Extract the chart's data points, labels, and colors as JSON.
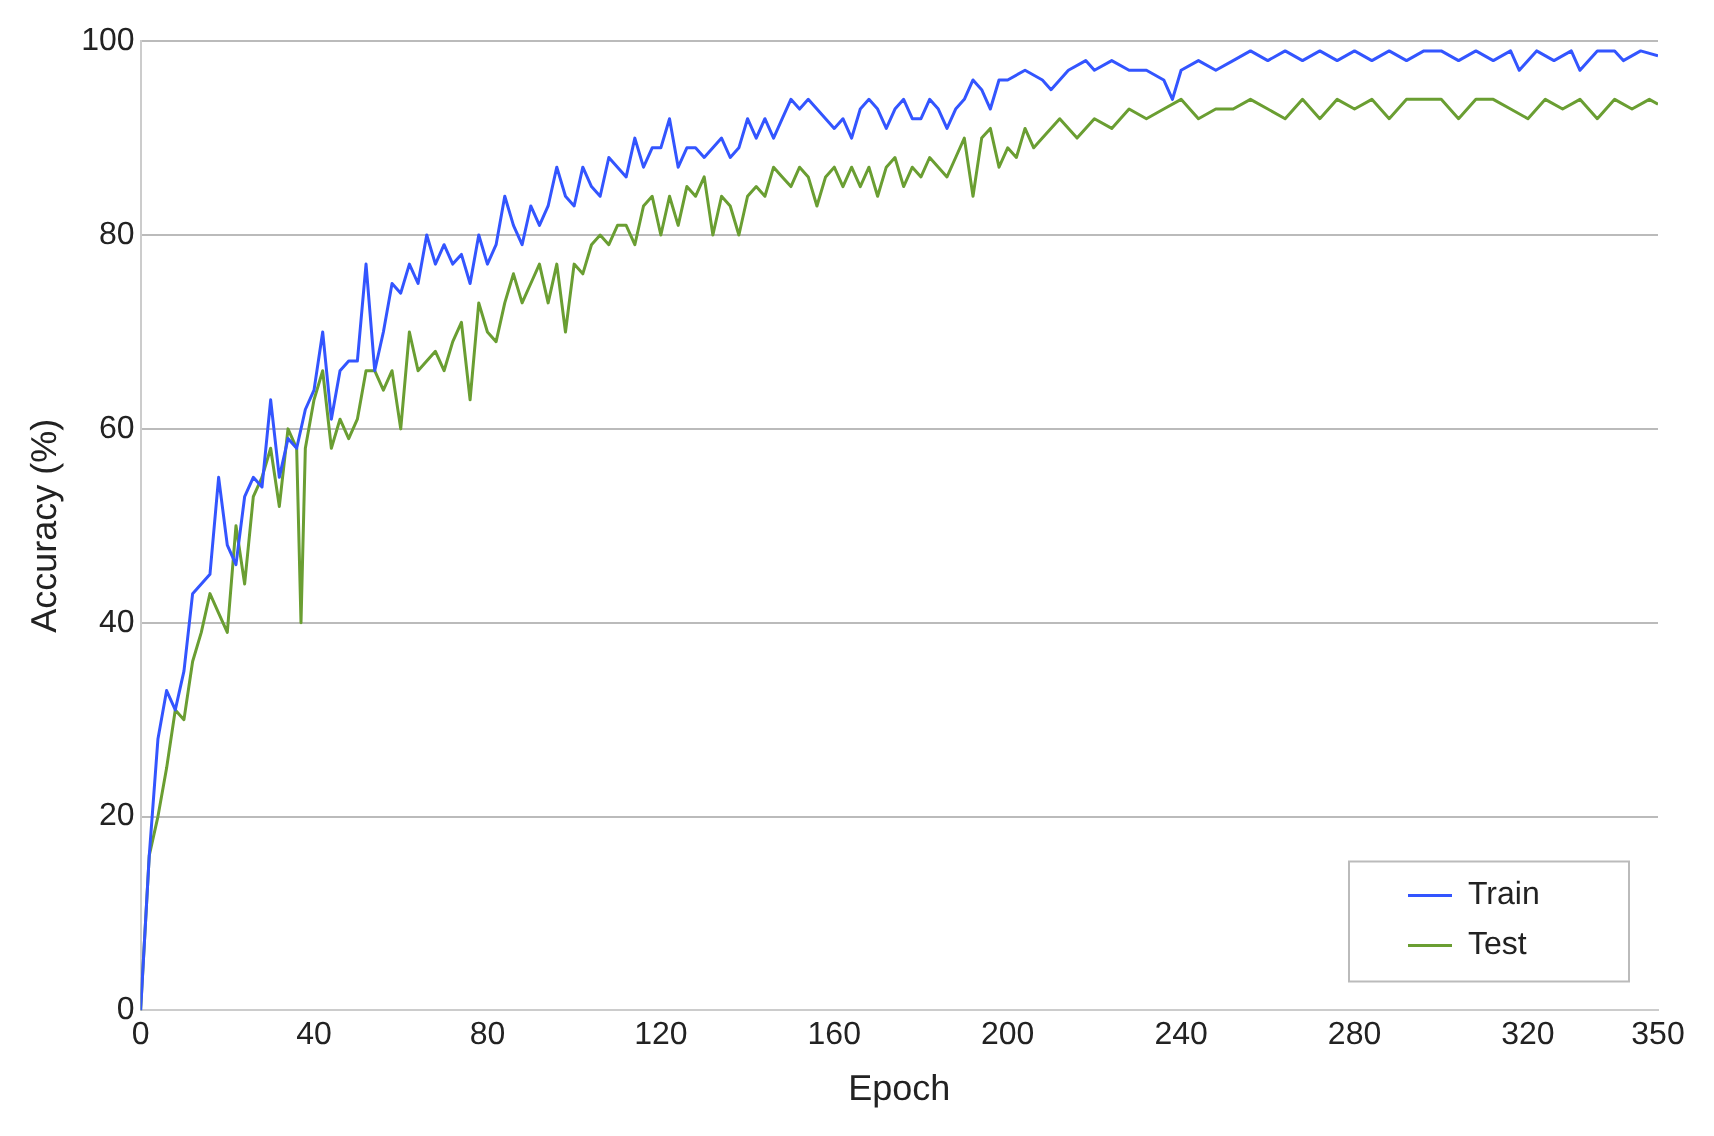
{
  "chart_data": {
    "type": "line",
    "xlabel": "Epoch",
    "ylabel": "Accuracy (%)",
    "xlim": [
      0,
      350
    ],
    "xticks": [
      0,
      40,
      80,
      120,
      160,
      200,
      240,
      280,
      320,
      350
    ],
    "ylim": [
      0,
      100
    ],
    "yticks": [
      0,
      20,
      40,
      60,
      80,
      100
    ],
    "grid": "y",
    "legend": "bottom right",
    "marker": "none",
    "line_style": "solid",
    "series": [
      {
        "name": "Train",
        "color": "#3355ff",
        "x": [
          0,
          2,
          4,
          6,
          8,
          10,
          12,
          14,
          16,
          18,
          20,
          22,
          24,
          26,
          28,
          30,
          32,
          34,
          36,
          38,
          40,
          42,
          44,
          46,
          48,
          50,
          52,
          54,
          56,
          58,
          60,
          62,
          64,
          66,
          68,
          70,
          72,
          74,
          76,
          78,
          80,
          82,
          84,
          86,
          88,
          90,
          92,
          94,
          96,
          98,
          100,
          102,
          104,
          106,
          108,
          110,
          112,
          114,
          116,
          118,
          120,
          122,
          124,
          126,
          128,
          130,
          132,
          134,
          136,
          138,
          140,
          142,
          144,
          146,
          148,
          150,
          152,
          154,
          156,
          158,
          160,
          162,
          164,
          166,
          168,
          170,
          172,
          174,
          176,
          178,
          180,
          182,
          184,
          186,
          188,
          190,
          192,
          194,
          196,
          198,
          200,
          204,
          208,
          210,
          214,
          218,
          220,
          224,
          228,
          232,
          236,
          238,
          240,
          244,
          248,
          252,
          256,
          260,
          264,
          268,
          272,
          276,
          280,
          284,
          288,
          292,
          296,
          300,
          304,
          308,
          312,
          316,
          318,
          322,
          326,
          330,
          332,
          336,
          340,
          342,
          346,
          350
        ],
        "values": [
          0,
          16,
          28,
          33,
          31,
          35,
          43,
          44,
          45,
          55,
          48,
          46,
          53,
          55,
          54,
          63,
          55,
          59,
          58,
          62,
          64,
          70,
          61,
          66,
          67,
          67,
          77,
          66,
          70,
          75,
          74,
          77,
          75,
          80,
          77,
          79,
          77,
          78,
          75,
          80,
          77,
          79,
          84,
          81,
          79,
          83,
          81,
          83,
          87,
          84,
          83,
          87,
          85,
          84,
          88,
          87,
          86,
          90,
          87,
          89,
          89,
          92,
          87,
          89,
          89,
          88,
          89,
          90,
          88,
          89,
          92,
          90,
          92,
          90,
          92,
          94,
          93,
          94,
          93,
          92,
          91,
          92,
          90,
          93,
          94,
          93,
          91,
          93,
          94,
          92,
          92,
          94,
          93,
          91,
          93,
          94,
          96,
          95,
          93,
          96,
          96,
          97,
          96,
          95,
          97,
          98,
          97,
          98,
          97,
          97,
          96,
          94,
          97,
          98,
          97,
          98,
          99,
          98,
          99,
          98,
          99,
          98,
          99,
          98,
          99,
          98,
          99,
          99,
          98,
          99,
          98,
          99,
          97,
          99,
          98,
          99,
          97,
          99,
          99,
          98,
          99,
          98.5
        ]
      },
      {
        "name": "Test",
        "color": "#6a9e32",
        "x": [
          0,
          2,
          4,
          6,
          8,
          10,
          12,
          14,
          16,
          18,
          20,
          22,
          24,
          26,
          28,
          30,
          32,
          34,
          36,
          37,
          38,
          40,
          42,
          44,
          46,
          48,
          50,
          52,
          54,
          56,
          58,
          60,
          62,
          64,
          66,
          68,
          70,
          72,
          74,
          76,
          78,
          80,
          82,
          84,
          86,
          88,
          90,
          92,
          94,
          96,
          98,
          100,
          102,
          104,
          106,
          108,
          110,
          112,
          114,
          116,
          118,
          120,
          122,
          124,
          126,
          128,
          130,
          132,
          134,
          136,
          138,
          140,
          142,
          144,
          146,
          148,
          150,
          152,
          154,
          156,
          158,
          160,
          162,
          164,
          166,
          168,
          170,
          172,
          174,
          176,
          178,
          180,
          182,
          184,
          186,
          188,
          190,
          192,
          194,
          196,
          198,
          200,
          202,
          204,
          206,
          208,
          212,
          216,
          220,
          224,
          228,
          232,
          236,
          240,
          244,
          248,
          252,
          256,
          260,
          264,
          268,
          272,
          276,
          280,
          284,
          288,
          292,
          296,
          300,
          304,
          308,
          312,
          316,
          320,
          324,
          328,
          332,
          336,
          340,
          344,
          348,
          350
        ],
        "values": [
          0,
          16,
          20,
          25,
          31,
          30,
          36,
          39,
          43,
          41,
          39,
          50,
          44,
          53,
          55,
          58,
          52,
          60,
          58,
          40,
          58,
          63,
          66,
          58,
          61,
          59,
          61,
          66,
          66,
          64,
          66,
          60,
          70,
          66,
          67,
          68,
          66,
          69,
          71,
          63,
          73,
          70,
          69,
          73,
          76,
          73,
          75,
          77,
          73,
          77,
          70,
          77,
          76,
          79,
          80,
          79,
          81,
          81,
          79,
          83,
          84,
          80,
          84,
          81,
          85,
          84,
          86,
          80,
          84,
          83,
          80,
          84,
          85,
          84,
          87,
          86,
          85,
          87,
          86,
          83,
          86,
          87,
          85,
          87,
          85,
          87,
          84,
          87,
          88,
          85,
          87,
          86,
          88,
          87,
          86,
          88,
          90,
          84,
          90,
          91,
          87,
          89,
          88,
          91,
          89,
          90,
          92,
          90,
          92,
          91,
          93,
          92,
          93,
          94,
          92,
          93,
          93,
          94,
          93,
          92,
          94,
          92,
          94,
          93,
          94,
          92,
          94,
          94,
          94,
          92,
          94,
          94,
          93,
          92,
          94,
          93,
          94,
          92,
          94,
          93,
          94,
          93.5
        ]
      }
    ]
  }
}
